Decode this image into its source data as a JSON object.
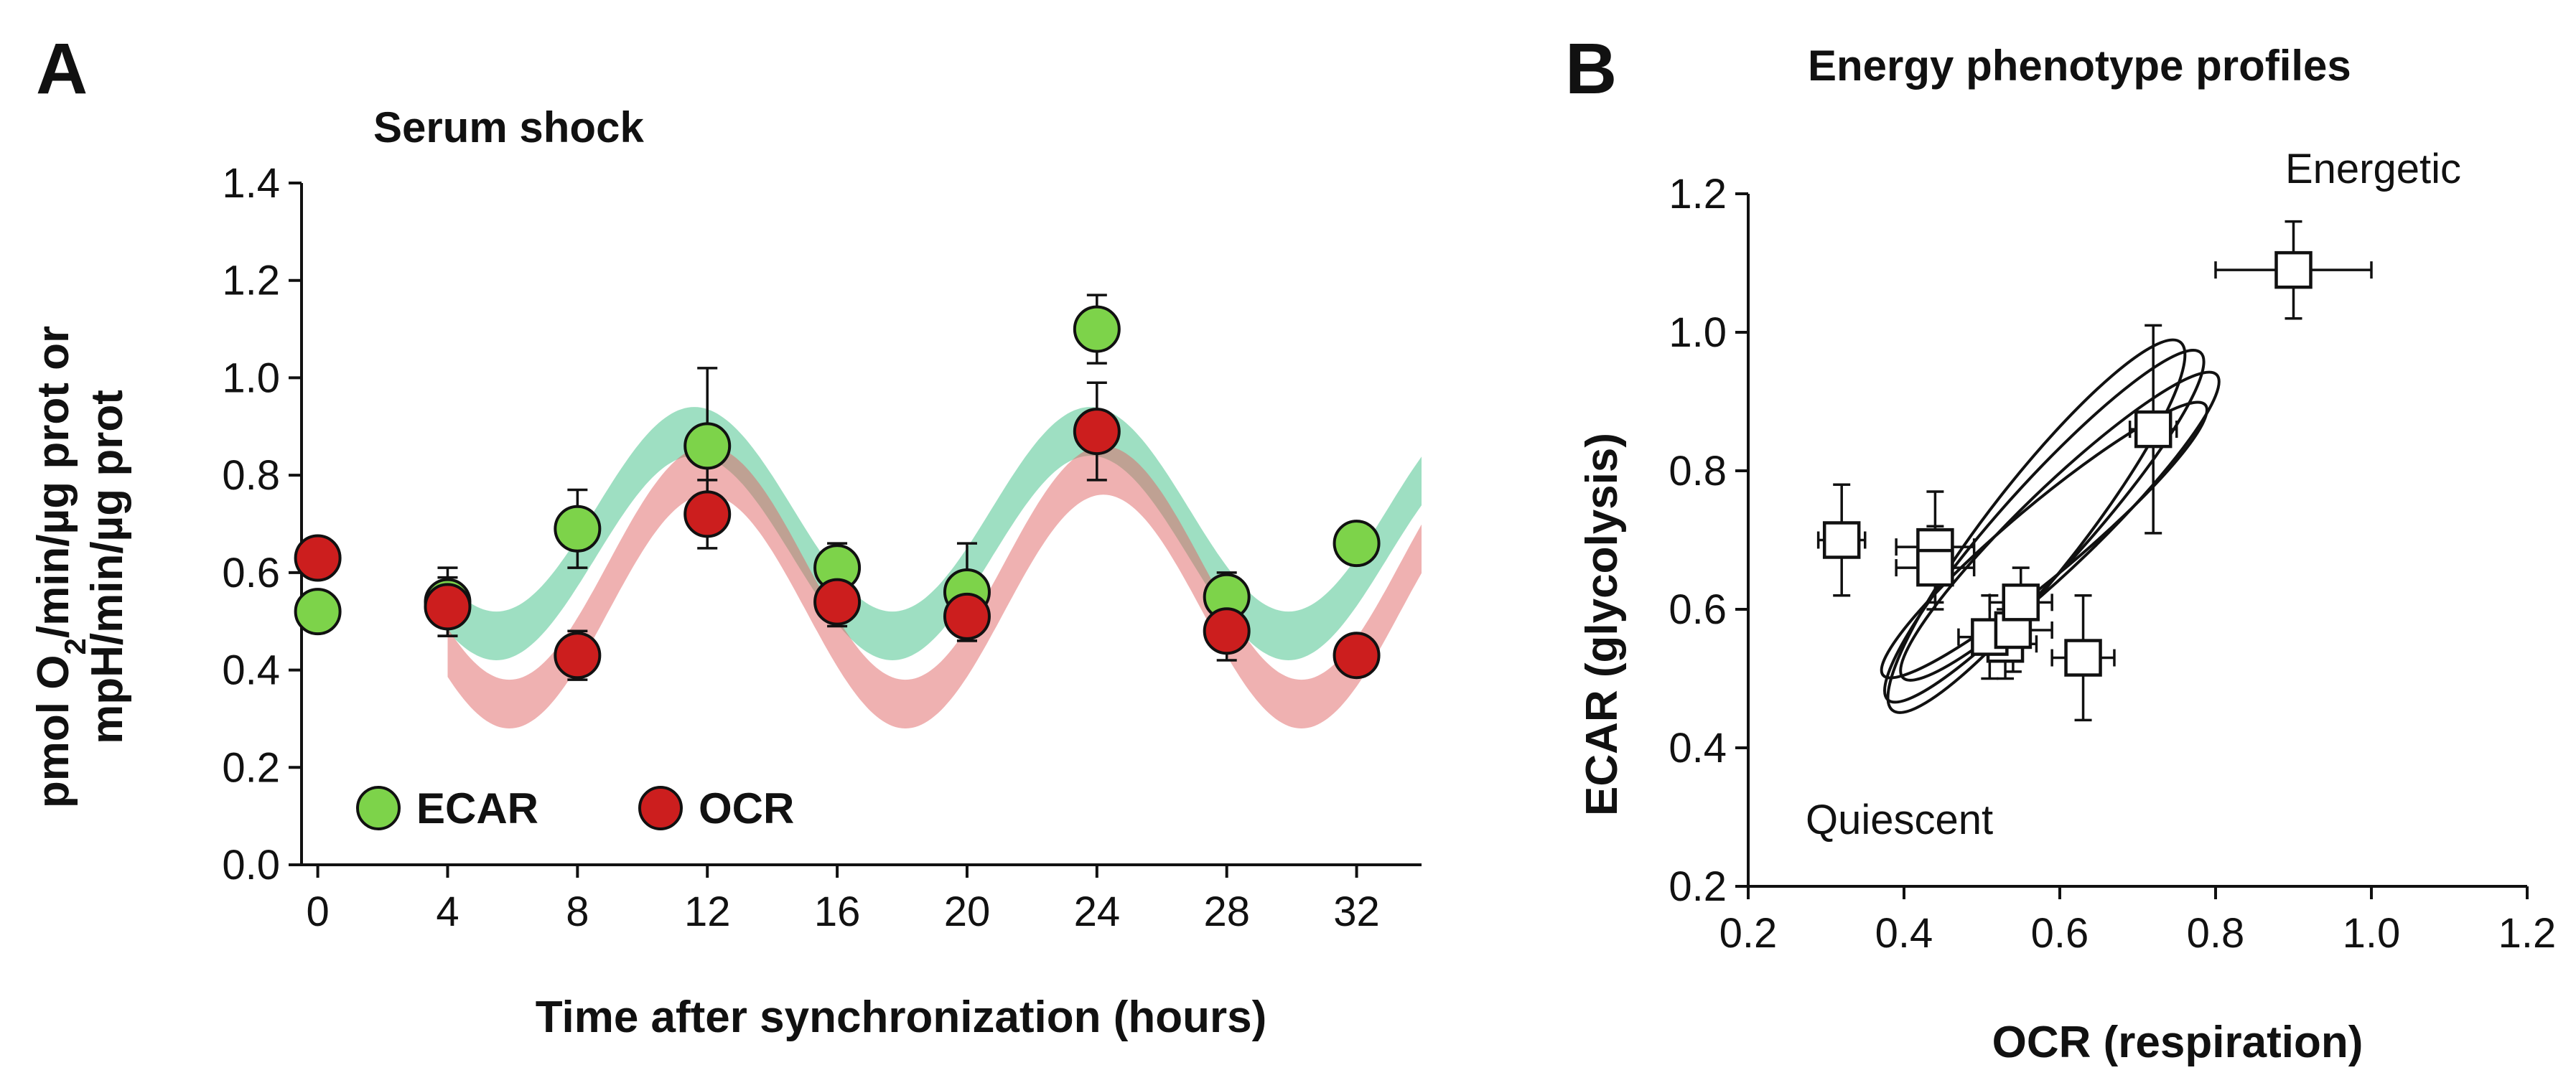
{
  "chart_data": [
    {
      "panel": "A",
      "type": "scatter",
      "title": "Serum shock",
      "xlabel": "Time after synchronization (hours)",
      "ylabel_line1": "pmol O",
      "ylabel_sub": "2",
      "ylabel_line1_rest": "/min/µg prot or",
      "ylabel_line2": "mpH/min/µg prot",
      "xlim": [
        -0.5,
        34
      ],
      "ylim": [
        0,
        1.4
      ],
      "xticks": [
        0,
        4,
        8,
        12,
        16,
        20,
        24,
        28,
        32
      ],
      "yticks": [
        0.0,
        0.2,
        0.4,
        0.6,
        0.8,
        1.0,
        1.2,
        1.4
      ],
      "ytick_labels": [
        "0.0",
        "0.2",
        "0.4",
        "0.6",
        "0.8",
        "1.0",
        "1.2",
        "1.4"
      ],
      "series": [
        {
          "name": "ECAR",
          "color": "#7dd34a",
          "band_color": "#3dbf86",
          "x": [
            0,
            4,
            8,
            12,
            16,
            20,
            24,
            28,
            32
          ],
          "y": [
            0.52,
            0.54,
            0.69,
            0.86,
            0.61,
            0.56,
            1.1,
            0.55,
            0.66
          ],
          "err": [
            0.0,
            0.07,
            0.08,
            0.16,
            0.05,
            0.1,
            0.07,
            0.05,
            0.02
          ],
          "fit": {
            "mean": 0.68,
            "amp": 0.21,
            "period": 12.2,
            "peak": 11.6,
            "x_start": 4,
            "half_width": 0.05
          }
        },
        {
          "name": "OCR",
          "color": "#cc1e1e",
          "band_color": "#e06464",
          "x": [
            0,
            4,
            8,
            12,
            16,
            20,
            24,
            28,
            32
          ],
          "y": [
            0.63,
            0.53,
            0.43,
            0.72,
            0.54,
            0.51,
            0.89,
            0.48,
            0.43
          ],
          "err": [
            0.04,
            0.06,
            0.05,
            0.07,
            0.05,
            0.05,
            0.1,
            0.06,
            0.02
          ],
          "fit": {
            "mean": 0.57,
            "amp": 0.24,
            "period": 12.2,
            "peak": 12.0,
            "x_start": 4,
            "half_width": 0.05
          }
        }
      ],
      "legend": [
        "ECAR",
        "OCR"
      ]
    },
    {
      "panel": "B",
      "type": "scatter",
      "title": "Energy phenotype profiles",
      "xlabel": "OCR (respiration)",
      "ylabel": "ECAR (glycolysis)",
      "xlim": [
        0.2,
        1.2
      ],
      "ylim": [
        0.2,
        1.2
      ],
      "xticks": [
        0.2,
        0.4,
        0.6,
        0.8,
        1.0,
        1.2
      ],
      "xtick_labels": [
        "0.2",
        "0.4",
        "0.6",
        "0.8",
        "1.0",
        "1.2"
      ],
      "yticks": [
        0.2,
        0.4,
        0.6,
        0.8,
        1.0,
        1.2
      ],
      "ytick_labels": [
        "0.2",
        "0.4",
        "0.6",
        "0.8",
        "1.0",
        "1.2"
      ],
      "annotations": [
        "Energetic",
        "Quiescent"
      ],
      "points": [
        {
          "x": 0.32,
          "y": 0.7,
          "xerr": 0.03,
          "yerr": 0.08
        },
        {
          "x": 0.44,
          "y": 0.69,
          "xerr": 0.05,
          "yerr": 0.08
        },
        {
          "x": 0.44,
          "y": 0.66,
          "xerr": 0.05,
          "yerr": 0.06
        },
        {
          "x": 0.53,
          "y": 0.55,
          "xerr": 0.04,
          "yerr": 0.05
        },
        {
          "x": 0.51,
          "y": 0.56,
          "xerr": 0.04,
          "yerr": 0.06
        },
        {
          "x": 0.54,
          "y": 0.57,
          "xerr": 0.05,
          "yerr": 0.06
        },
        {
          "x": 0.55,
          "y": 0.61,
          "xerr": 0.04,
          "yerr": 0.05
        },
        {
          "x": 0.63,
          "y": 0.53,
          "xerr": 0.04,
          "yerr": 0.09
        },
        {
          "x": 0.72,
          "y": 0.86,
          "xerr": 0.03,
          "yerr": 0.15
        },
        {
          "x": 0.9,
          "y": 1.09,
          "xerr": 0.1,
          "yerr": 0.07
        }
      ],
      "ellipses": [
        {
          "cx": 0.58,
          "cy": 0.72,
          "rx": 0.3,
          "ry": 0.055,
          "angle_deg": 48
        },
        {
          "cx": 0.6,
          "cy": 0.72,
          "rx": 0.28,
          "ry": 0.05,
          "angle_deg": 44
        },
        {
          "cx": 0.58,
          "cy": 0.7,
          "rx": 0.27,
          "ry": 0.045,
          "angle_deg": 40
        },
        {
          "cx": 0.57,
          "cy": 0.72,
          "rx": 0.3,
          "ry": 0.06,
          "angle_deg": 52
        }
      ]
    }
  ]
}
